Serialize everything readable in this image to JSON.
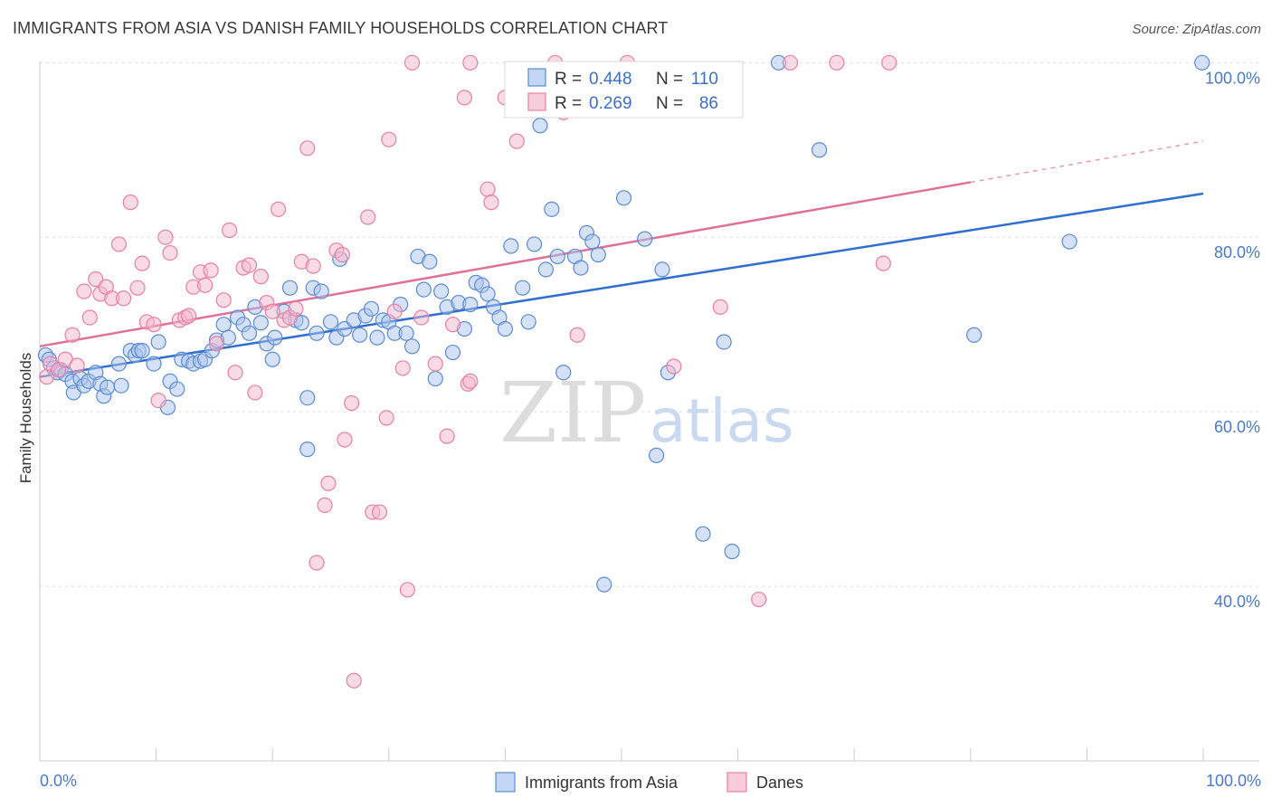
{
  "header": {
    "title": "IMMIGRANTS FROM ASIA VS DANISH FAMILY HOUSEHOLDS CORRELATION CHART",
    "source": "Source: ZipAtlas.com"
  },
  "watermark": {
    "zip": "ZIP",
    "atlas": "atlas"
  },
  "colors": {
    "blue_fill": "#a9c4ee",
    "blue_stroke": "#5b8bd8",
    "blue_line": "#2f6fd0",
    "pink_fill": "#f5b8cc",
    "pink_stroke": "#e87fa3",
    "pink_line": "#e07098",
    "grid": "#dddddd",
    "axis_text": "#4a79c9"
  },
  "stats": {
    "r_label": "R =",
    "n_label": "N =",
    "rows": [
      {
        "series": "Immigrants from Asia",
        "r": "0.448",
        "n": "110"
      },
      {
        "series": "Danes",
        "r": "0.269",
        "n": "86"
      }
    ]
  },
  "chart_data": {
    "type": "scatter",
    "title": "IMMIGRANTS FROM ASIA VS DANISH FAMILY HOUSEHOLDS CORRELATION CHART",
    "xlabel": "",
    "ylabel": "Family Households",
    "xlim": [
      0,
      100
    ],
    "ylim": [
      20,
      102
    ],
    "x_tick_labels": [
      "0.0%",
      "100.0%"
    ],
    "y_ticks": [
      40,
      60,
      80,
      100
    ],
    "y_tick_labels": [
      "40.0%",
      "60.0%",
      "80.0%",
      "100.0%"
    ],
    "grid": true,
    "legend": [
      "Immigrants from Asia",
      "Danes"
    ],
    "series": [
      {
        "name": "Immigrants from Asia",
        "trend": {
          "x0": 0,
          "y0": 64.0,
          "x1": 100,
          "y1": 85.0,
          "solid_to": 100
        },
        "points": [
          [
            0.5,
            66.5
          ],
          [
            0.8,
            66.0
          ],
          [
            1.2,
            65.0
          ],
          [
            1.5,
            64.5
          ],
          [
            1.8,
            64.8
          ],
          [
            2.2,
            64.3
          ],
          [
            2.8,
            63.5
          ],
          [
            2.9,
            62.2
          ],
          [
            3.5,
            63.8
          ],
          [
            3.8,
            63.0
          ],
          [
            4.2,
            63.5
          ],
          [
            4.8,
            64.5
          ],
          [
            5.2,
            63.2
          ],
          [
            5.5,
            61.8
          ],
          [
            5.8,
            62.8
          ],
          [
            6.8,
            65.5
          ],
          [
            7.0,
            63.0
          ],
          [
            7.8,
            67.0
          ],
          [
            8.2,
            66.5
          ],
          [
            8.5,
            67.0
          ],
          [
            8.8,
            67.0
          ],
          [
            9.8,
            65.5
          ],
          [
            10.2,
            68.0
          ],
          [
            11.0,
            60.5
          ],
          [
            11.2,
            63.5
          ],
          [
            11.8,
            62.6
          ],
          [
            12.2,
            66.0
          ],
          [
            12.8,
            65.8
          ],
          [
            13.2,
            65.5
          ],
          [
            13.8,
            65.8
          ],
          [
            14.2,
            66.0
          ],
          [
            14.8,
            67.0
          ],
          [
            15.2,
            68.2
          ],
          [
            15.8,
            70.0
          ],
          [
            16.2,
            68.5
          ],
          [
            17.0,
            70.8
          ],
          [
            17.5,
            70.0
          ],
          [
            18.0,
            69.0
          ],
          [
            18.5,
            72.0
          ],
          [
            19.0,
            70.2
          ],
          [
            19.5,
            67.8
          ],
          [
            20.0,
            66.0
          ],
          [
            20.2,
            68.5
          ],
          [
            21.0,
            71.5
          ],
          [
            21.5,
            74.2
          ],
          [
            22.0,
            70.5
          ],
          [
            22.5,
            70.2
          ],
          [
            23.0,
            61.6
          ],
          [
            23.5,
            74.2
          ],
          [
            23.8,
            69.0
          ],
          [
            24.2,
            73.8
          ],
          [
            25.0,
            70.3
          ],
          [
            25.5,
            68.5
          ],
          [
            25.8,
            77.5
          ],
          [
            26.2,
            69.5
          ],
          [
            27.0,
            70.5
          ],
          [
            27.5,
            68.8
          ],
          [
            28.0,
            71.0
          ],
          [
            28.5,
            71.8
          ],
          [
            29.0,
            68.5
          ],
          [
            29.5,
            70.5
          ],
          [
            30.0,
            70.3
          ],
          [
            30.5,
            69.0
          ],
          [
            31.0,
            72.3
          ],
          [
            31.5,
            69.0
          ],
          [
            32.0,
            67.5
          ],
          [
            32.5,
            77.8
          ],
          [
            33.0,
            74.0
          ],
          [
            33.5,
            77.2
          ],
          [
            34.0,
            63.8
          ],
          [
            34.5,
            73.8
          ],
          [
            35.0,
            72.0
          ],
          [
            35.5,
            66.8
          ],
          [
            36.0,
            72.5
          ],
          [
            36.5,
            69.5
          ],
          [
            37.0,
            72.3
          ],
          [
            37.5,
            74.8
          ],
          [
            38.0,
            74.5
          ],
          [
            38.5,
            73.5
          ],
          [
            39.0,
            72.0
          ],
          [
            39.5,
            70.8
          ],
          [
            40.0,
            69.5
          ],
          [
            40.5,
            79.0
          ],
          [
            41.5,
            74.2
          ],
          [
            42.0,
            70.3
          ],
          [
            42.5,
            79.2
          ],
          [
            43.0,
            92.8
          ],
          [
            43.5,
            76.3
          ],
          [
            44.0,
            83.2
          ],
          [
            44.5,
            77.8
          ],
          [
            45.0,
            64.5
          ],
          [
            46.0,
            77.8
          ],
          [
            46.5,
            76.5
          ],
          [
            47.0,
            80.5
          ],
          [
            47.5,
            79.5
          ],
          [
            48.0,
            78.0
          ],
          [
            48.5,
            40.2
          ],
          [
            50.2,
            84.5
          ],
          [
            52.0,
            79.8
          ],
          [
            53.0,
            55.0
          ],
          [
            53.5,
            76.3
          ],
          [
            54.0,
            64.5
          ],
          [
            57.0,
            46.0
          ],
          [
            58.8,
            68.0
          ],
          [
            59.5,
            44.0
          ],
          [
            63.5,
            100.0
          ],
          [
            67.0,
            90.0
          ],
          [
            80.3,
            68.8
          ],
          [
            88.5,
            79.5
          ],
          [
            99.9,
            100.0
          ],
          [
            23.0,
            55.7
          ]
        ]
      },
      {
        "name": "Danes",
        "trend": {
          "x0": 0,
          "y0": 67.5,
          "x1": 100,
          "y1": 91.0,
          "solid_to": 80
        },
        "points": [
          [
            0.6,
            64.0
          ],
          [
            0.9,
            65.5
          ],
          [
            1.6,
            64.8
          ],
          [
            2.2,
            66.0
          ],
          [
            2.8,
            68.8
          ],
          [
            3.2,
            65.3
          ],
          [
            3.8,
            73.8
          ],
          [
            4.3,
            70.8
          ],
          [
            4.8,
            75.2
          ],
          [
            5.2,
            73.5
          ],
          [
            5.7,
            74.3
          ],
          [
            6.2,
            73.0
          ],
          [
            6.8,
            79.2
          ],
          [
            7.2,
            73.0
          ],
          [
            7.8,
            84.0
          ],
          [
            8.4,
            74.2
          ],
          [
            8.8,
            77.0
          ],
          [
            9.2,
            70.3
          ],
          [
            9.8,
            70.0
          ],
          [
            10.2,
            61.3
          ],
          [
            10.8,
            80.0
          ],
          [
            11.2,
            78.2
          ],
          [
            12.0,
            70.5
          ],
          [
            12.5,
            70.8
          ],
          [
            12.8,
            71.0
          ],
          [
            13.2,
            74.3
          ],
          [
            13.8,
            76.0
          ],
          [
            14.2,
            74.5
          ],
          [
            14.7,
            76.2
          ],
          [
            15.2,
            67.8
          ],
          [
            15.8,
            72.8
          ],
          [
            16.3,
            80.8
          ],
          [
            16.8,
            64.5
          ],
          [
            17.5,
            76.5
          ],
          [
            18.0,
            76.8
          ],
          [
            18.5,
            62.2
          ],
          [
            19.0,
            75.5
          ],
          [
            19.5,
            72.5
          ],
          [
            20.0,
            71.5
          ],
          [
            20.5,
            83.2
          ],
          [
            21.0,
            70.5
          ],
          [
            21.5,
            70.8
          ],
          [
            22.0,
            71.8
          ],
          [
            22.5,
            77.2
          ],
          [
            23.0,
            90.2
          ],
          [
            23.5,
            76.7
          ],
          [
            23.8,
            42.7
          ],
          [
            24.5,
            49.3
          ],
          [
            24.8,
            51.8
          ],
          [
            25.5,
            78.5
          ],
          [
            26.0,
            78.0
          ],
          [
            26.2,
            56.8
          ],
          [
            26.8,
            61.0
          ],
          [
            27.0,
            29.2
          ],
          [
            28.2,
            82.3
          ],
          [
            28.6,
            48.5
          ],
          [
            29.2,
            48.5
          ],
          [
            29.8,
            59.3
          ],
          [
            30.0,
            91.2
          ],
          [
            30.5,
            71.5
          ],
          [
            31.2,
            65.0
          ],
          [
            31.6,
            39.6
          ],
          [
            32.0,
            100.0
          ],
          [
            32.8,
            70.8
          ],
          [
            34.0,
            65.5
          ],
          [
            35.0,
            57.2
          ],
          [
            35.5,
            70.0
          ],
          [
            36.5,
            96.0
          ],
          [
            36.8,
            63.2
          ],
          [
            37.0,
            100.0
          ],
          [
            38.5,
            85.5
          ],
          [
            38.8,
            84.0
          ],
          [
            40.0,
            96.0
          ],
          [
            41.0,
            91.0
          ],
          [
            44.3,
            100.0
          ],
          [
            45.0,
            94.3
          ],
          [
            46.2,
            68.8
          ],
          [
            50.5,
            100.0
          ],
          [
            54.5,
            65.2
          ],
          [
            58.5,
            72.0
          ],
          [
            61.8,
            38.5
          ],
          [
            64.5,
            100.0
          ],
          [
            68.5,
            100.0
          ],
          [
            72.5,
            77.0
          ],
          [
            73.0,
            100.0
          ],
          [
            37.0,
            63.5
          ]
        ]
      }
    ]
  }
}
